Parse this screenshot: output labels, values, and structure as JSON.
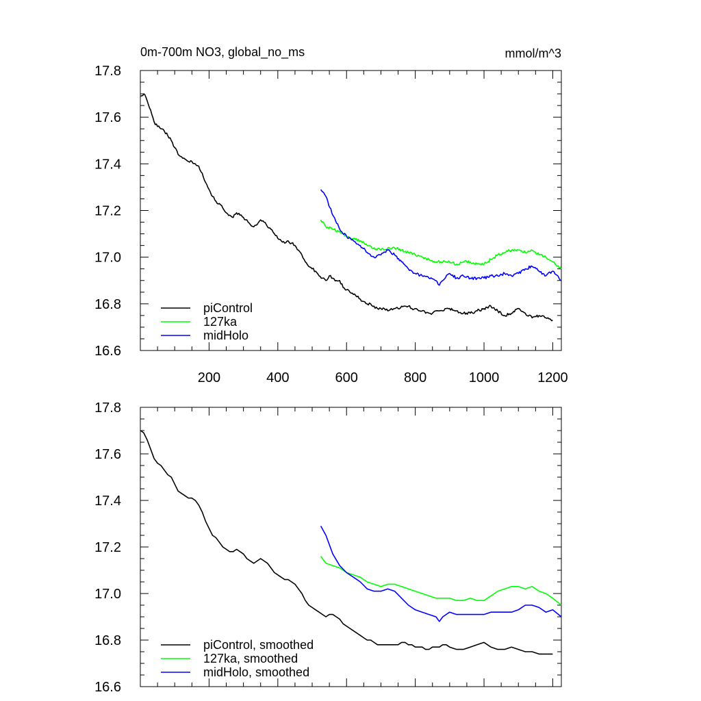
{
  "chart_data": [
    {
      "type": "line",
      "title": "0m-700m NO3, global_no_ms",
      "units": "mmol/m^3",
      "xlabel": "",
      "ylabel": "",
      "xlim": [
        0,
        1225
      ],
      "ylim": [
        16.6,
        17.8
      ],
      "xticks": [
        200,
        400,
        600,
        800,
        1000,
        1200
      ],
      "yticks": [
        16.6,
        16.8,
        17.0,
        17.2,
        17.4,
        17.6,
        17.8
      ],
      "x_tick_labels_shown": true,
      "legend_position": "bottom-left",
      "series": [
        {
          "name": "piControl",
          "color": "#000000",
          "x": [
            1,
            10,
            20,
            30,
            40,
            50,
            60,
            70,
            80,
            90,
            100,
            110,
            120,
            130,
            140,
            150,
            160,
            170,
            180,
            190,
            200,
            210,
            220,
            230,
            240,
            250,
            260,
            270,
            280,
            290,
            300,
            310,
            320,
            330,
            340,
            350,
            360,
            370,
            380,
            390,
            400,
            410,
            420,
            430,
            440,
            450,
            460,
            470,
            480,
            490,
            500,
            510,
            520,
            530,
            540,
            550,
            560,
            570,
            580,
            590,
            600,
            610,
            620,
            630,
            640,
            650,
            660,
            670,
            680,
            690,
            700,
            710,
            720,
            730,
            740,
            750,
            760,
            770,
            780,
            790,
            800,
            810,
            820,
            830,
            840,
            850,
            860,
            870,
            880,
            890,
            900,
            920,
            940,
            960,
            980,
            1000,
            1020,
            1040,
            1060,
            1080,
            1100,
            1120,
            1140,
            1160,
            1180,
            1200
          ],
          "values": [
            17.69,
            17.7,
            17.67,
            17.63,
            17.58,
            17.56,
            17.55,
            17.54,
            17.52,
            17.5,
            17.47,
            17.44,
            17.43,
            17.42,
            17.41,
            17.41,
            17.4,
            17.39,
            17.36,
            17.32,
            17.29,
            17.26,
            17.24,
            17.23,
            17.21,
            17.19,
            17.18,
            17.17,
            17.19,
            17.18,
            17.17,
            17.16,
            17.14,
            17.13,
            17.14,
            17.16,
            17.15,
            17.13,
            17.12,
            17.1,
            17.08,
            17.07,
            17.06,
            17.07,
            17.06,
            17.05,
            17.03,
            17.01,
            16.98,
            16.96,
            16.95,
            16.94,
            16.92,
            16.91,
            16.9,
            16.92,
            16.91,
            16.9,
            16.9,
            16.87,
            16.86,
            16.85,
            16.84,
            16.83,
            16.82,
            16.81,
            16.8,
            16.8,
            16.79,
            16.78,
            16.78,
            16.78,
            16.77,
            16.78,
            16.78,
            16.78,
            16.79,
            16.79,
            16.79,
            16.78,
            16.78,
            16.77,
            16.77,
            16.76,
            16.76,
            16.76,
            16.77,
            16.77,
            16.77,
            16.78,
            16.78,
            16.77,
            16.76,
            16.76,
            16.77,
            16.78,
            16.79,
            16.77,
            16.75,
            16.76,
            16.78,
            16.76,
            16.74,
            16.75,
            16.74,
            16.73
          ]
        },
        {
          "name": "127ka",
          "color": "#00ff00",
          "x": [
            525,
            540,
            560,
            580,
            600,
            620,
            640,
            660,
            680,
            700,
            720,
            740,
            760,
            780,
            800,
            820,
            840,
            860,
            880,
            900,
            920,
            940,
            960,
            980,
            1000,
            1020,
            1040,
            1060,
            1080,
            1100,
            1120,
            1140,
            1160,
            1180,
            1200,
            1225
          ],
          "values": [
            17.16,
            17.13,
            17.12,
            17.11,
            17.09,
            17.08,
            17.07,
            17.05,
            17.04,
            17.03,
            17.04,
            17.04,
            17.03,
            17.02,
            17.01,
            17.0,
            16.99,
            16.98,
            16.98,
            16.98,
            16.97,
            16.98,
            16.98,
            16.97,
            16.97,
            16.99,
            17.01,
            17.02,
            17.03,
            17.03,
            17.02,
            17.03,
            17.01,
            17.0,
            16.98,
            16.95
          ]
        },
        {
          "name": "midHolo",
          "color": "#0000ff",
          "x": [
            525,
            540,
            560,
            580,
            600,
            620,
            640,
            660,
            680,
            700,
            720,
            740,
            760,
            780,
            800,
            820,
            840,
            860,
            870,
            880,
            900,
            920,
            940,
            960,
            980,
            1000,
            1020,
            1040,
            1060,
            1080,
            1100,
            1120,
            1140,
            1160,
            1180,
            1200,
            1225
          ],
          "values": [
            17.29,
            17.26,
            17.18,
            17.12,
            17.09,
            17.07,
            17.05,
            17.02,
            17.0,
            17.01,
            17.03,
            17.01,
            16.98,
            16.95,
            16.93,
            16.92,
            16.91,
            16.9,
            16.88,
            16.9,
            16.93,
            16.91,
            16.92,
            16.91,
            16.91,
            16.91,
            16.92,
            16.92,
            16.93,
            16.92,
            16.93,
            16.95,
            16.96,
            16.94,
            16.92,
            16.94,
            16.9
          ]
        }
      ]
    },
    {
      "type": "line",
      "title": "",
      "xlabel": "",
      "ylabel": "",
      "xlim": [
        0,
        1225
      ],
      "ylim": [
        16.6,
        17.8
      ],
      "xticks": [
        200,
        400,
        600,
        800,
        1000,
        1200
      ],
      "yticks": [
        16.6,
        16.8,
        17.0,
        17.2,
        17.4,
        17.6,
        17.8
      ],
      "x_tick_labels_shown": false,
      "legend_position": "bottom-left",
      "series": [
        {
          "name": "piControl, smoothed",
          "color": "#000000",
          "x": [
            1,
            10,
            20,
            30,
            40,
            50,
            60,
            70,
            80,
            90,
            100,
            110,
            120,
            130,
            140,
            150,
            160,
            170,
            180,
            190,
            200,
            210,
            220,
            230,
            240,
            250,
            260,
            270,
            280,
            290,
            300,
            310,
            320,
            330,
            340,
            350,
            360,
            370,
            380,
            390,
            400,
            410,
            420,
            430,
            440,
            450,
            460,
            470,
            480,
            490,
            500,
            510,
            520,
            530,
            540,
            550,
            560,
            570,
            580,
            590,
            600,
            610,
            620,
            630,
            640,
            650,
            660,
            670,
            680,
            690,
            700,
            710,
            720,
            730,
            740,
            750,
            760,
            770,
            780,
            790,
            800,
            810,
            820,
            830,
            840,
            850,
            860,
            870,
            880,
            890,
            900,
            920,
            940,
            960,
            980,
            1000,
            1020,
            1040,
            1060,
            1080,
            1100,
            1120,
            1140,
            1160,
            1180,
            1200
          ],
          "values": [
            17.7,
            17.69,
            17.66,
            17.62,
            17.58,
            17.56,
            17.55,
            17.53,
            17.51,
            17.5,
            17.47,
            17.44,
            17.43,
            17.42,
            17.41,
            17.41,
            17.4,
            17.38,
            17.35,
            17.31,
            17.28,
            17.25,
            17.24,
            17.22,
            17.2,
            17.19,
            17.18,
            17.18,
            17.19,
            17.18,
            17.17,
            17.15,
            17.14,
            17.13,
            17.14,
            17.15,
            17.14,
            17.13,
            17.11,
            17.09,
            17.08,
            17.07,
            17.06,
            17.06,
            17.05,
            17.04,
            17.02,
            17.0,
            16.97,
            16.95,
            16.94,
            16.93,
            16.92,
            16.91,
            16.9,
            16.91,
            16.91,
            16.9,
            16.89,
            16.87,
            16.86,
            16.85,
            16.84,
            16.83,
            16.82,
            16.81,
            16.8,
            16.8,
            16.79,
            16.78,
            16.78,
            16.78,
            16.78,
            16.78,
            16.78,
            16.78,
            16.79,
            16.79,
            16.78,
            16.78,
            16.77,
            16.77,
            16.77,
            16.76,
            16.76,
            16.77,
            16.77,
            16.77,
            16.78,
            16.78,
            16.77,
            16.76,
            16.76,
            16.77,
            16.78,
            16.79,
            16.77,
            16.76,
            16.76,
            16.77,
            16.76,
            16.75,
            16.75,
            16.74,
            16.74,
            16.74
          ]
        },
        {
          "name": "127ka, smoothed",
          "color": "#00ff00",
          "x": [
            525,
            540,
            560,
            580,
            600,
            620,
            640,
            660,
            680,
            700,
            720,
            740,
            760,
            780,
            800,
            820,
            840,
            860,
            880,
            900,
            920,
            940,
            960,
            980,
            1000,
            1020,
            1040,
            1060,
            1080,
            1100,
            1120,
            1140,
            1160,
            1180,
            1200,
            1225
          ],
          "values": [
            17.16,
            17.13,
            17.12,
            17.11,
            17.09,
            17.08,
            17.07,
            17.05,
            17.04,
            17.03,
            17.04,
            17.04,
            17.03,
            17.02,
            17.01,
            17.0,
            16.99,
            16.98,
            16.98,
            16.98,
            16.97,
            16.97,
            16.98,
            16.97,
            16.97,
            16.99,
            17.01,
            17.02,
            17.03,
            17.03,
            17.02,
            17.03,
            17.01,
            17.0,
            16.98,
            16.95
          ]
        },
        {
          "name": "midHolo, smoothed",
          "color": "#0000ff",
          "x": [
            525,
            540,
            560,
            580,
            600,
            620,
            640,
            660,
            680,
            700,
            720,
            740,
            760,
            780,
            800,
            820,
            840,
            860,
            870,
            880,
            900,
            920,
            940,
            960,
            980,
            1000,
            1020,
            1040,
            1060,
            1080,
            1100,
            1120,
            1140,
            1160,
            1180,
            1200,
            1225
          ],
          "values": [
            17.29,
            17.25,
            17.17,
            17.12,
            17.09,
            17.07,
            17.05,
            17.02,
            17.01,
            17.01,
            17.02,
            17.01,
            16.98,
            16.95,
            16.93,
            16.92,
            16.91,
            16.9,
            16.88,
            16.9,
            16.92,
            16.91,
            16.91,
            16.91,
            16.91,
            16.91,
            16.92,
            16.92,
            16.92,
            16.92,
            16.93,
            16.95,
            16.95,
            16.94,
            16.92,
            16.93,
            16.9
          ]
        }
      ]
    }
  ]
}
